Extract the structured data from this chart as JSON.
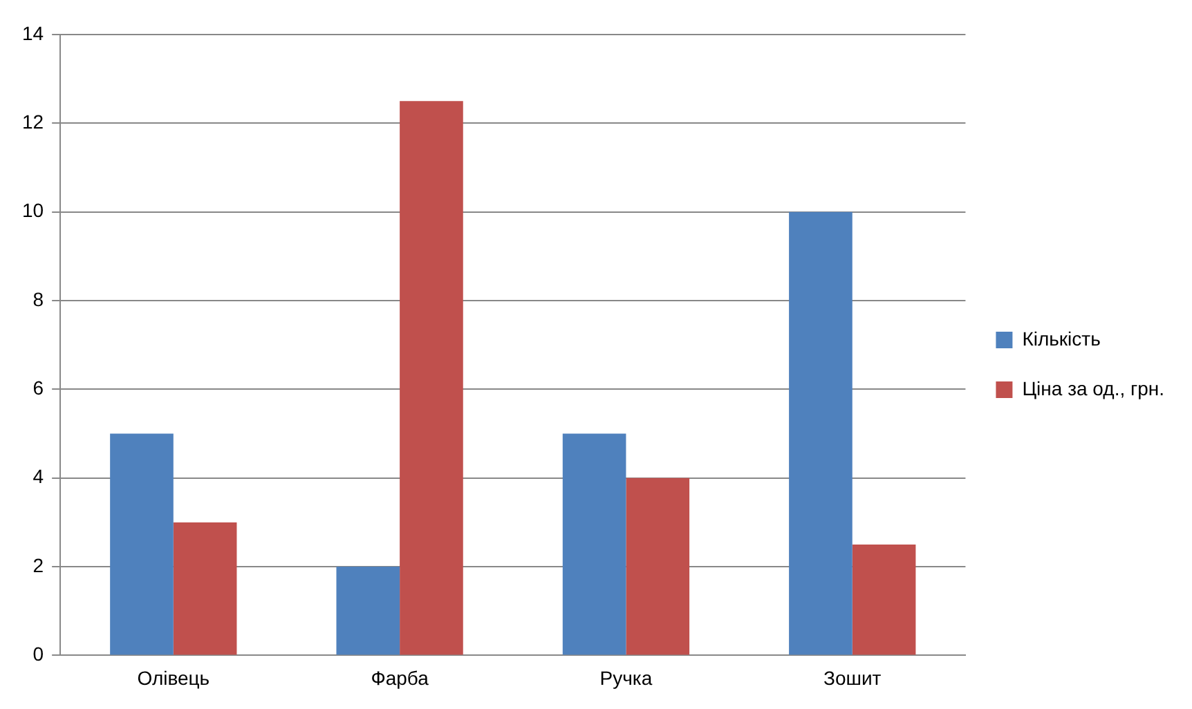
{
  "chart_data": {
    "type": "bar",
    "categories": [
      "Олівець",
      "Фарба",
      "Ручка",
      "Зошит"
    ],
    "series": [
      {
        "name": "Кількість",
        "color": "#4f81bd",
        "values": [
          5,
          2,
          5,
          10
        ]
      },
      {
        "name": "Ціна за од., грн.",
        "color": "#c0504d",
        "values": [
          3,
          12.5,
          4,
          2.5
        ]
      }
    ],
    "ylim": [
      0,
      14
    ],
    "yticks": [
      0,
      2,
      4,
      6,
      8,
      10,
      12,
      14
    ],
    "grid": "y",
    "legend": "right"
  }
}
